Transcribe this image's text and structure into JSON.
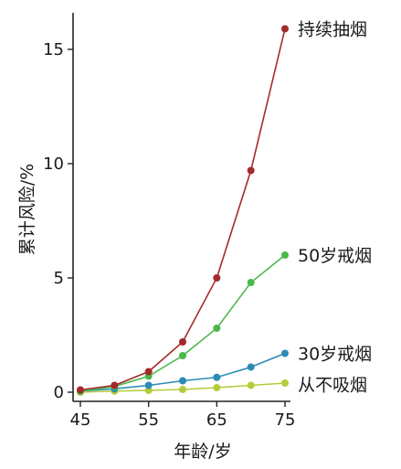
{
  "chart_data": {
    "type": "line",
    "xlabel": "年龄/岁",
    "ylabel": "累计风险/%",
    "x": [
      45,
      50,
      55,
      60,
      65,
      70,
      75
    ],
    "xticks": [
      45,
      55,
      65,
      75
    ],
    "yticks": [
      0,
      5,
      10,
      15
    ],
    "xlim": [
      45,
      75
    ],
    "ylim": [
      0,
      16
    ],
    "grid": false,
    "series": [
      {
        "name": "持续抽烟",
        "color": "#a52a2a",
        "values": [
          0.1,
          0.3,
          0.9,
          2.2,
          5.0,
          9.7,
          15.9
        ]
      },
      {
        "name": "50岁戒烟",
        "color": "#4cb84c",
        "values": [
          0.05,
          0.25,
          0.7,
          1.6,
          2.8,
          4.8,
          6.0
        ]
      },
      {
        "name": "30岁戒烟",
        "color": "#2b8cb4",
        "values": [
          0.05,
          0.15,
          0.3,
          0.5,
          0.65,
          1.1,
          1.7
        ]
      },
      {
        "name": "从不吸烟",
        "color": "#b5cc3a",
        "values": [
          0.0,
          0.05,
          0.08,
          0.12,
          0.2,
          0.3,
          0.4
        ]
      }
    ]
  }
}
